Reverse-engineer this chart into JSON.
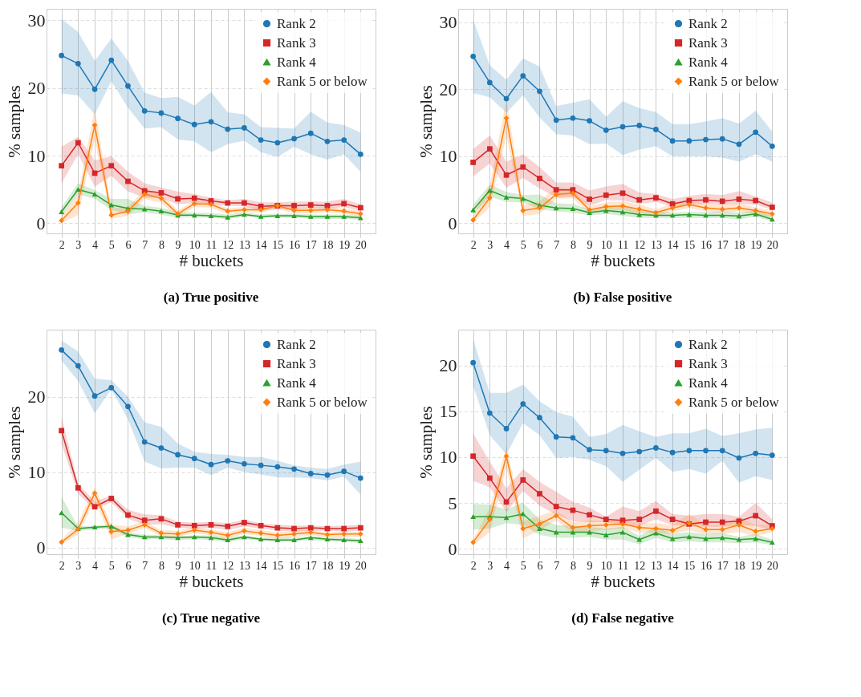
{
  "chart_data": [
    {
      "type": "line",
      "title": "(a) True positive",
      "xlabel": "# buckets",
      "ylabel": "% samples",
      "x": [
        2,
        3,
        4,
        5,
        6,
        7,
        8,
        9,
        10,
        11,
        12,
        13,
        14,
        15,
        16,
        17,
        18,
        19,
        20
      ],
      "xlim": [
        1.1,
        20.9
      ],
      "xticks": [
        2,
        3,
        4,
        5,
        6,
        7,
        8,
        9,
        10,
        11,
        12,
        13,
        14,
        15,
        16,
        17,
        18,
        19,
        20
      ],
      "ylim": [
        -1.5,
        31.7
      ],
      "yticks": [
        0,
        10,
        20,
        30
      ],
      "grid": true,
      "legend": "top right",
      "series": [
        {
          "name": "Rank 2",
          "color": "#1f77b4",
          "marker": "circle",
          "values": [
            24.8,
            23.6,
            19.8,
            24.1,
            20.3,
            16.6,
            16.3,
            15.5,
            14.6,
            15.0,
            13.9,
            14.1,
            12.3,
            11.9,
            12.5,
            13.3,
            12.1,
            12.3,
            10.2
          ],
          "lower": [
            19.2,
            18.9,
            16.1,
            21.0,
            17.1,
            14.0,
            14.2,
            12.4,
            12.1,
            10.5,
            11.7,
            12.2,
            10.5,
            9.8,
            11.3,
            10.2,
            9.4,
            10.2,
            7.6
          ],
          "upper": [
            30.2,
            28.3,
            24.0,
            27.3,
            24.0,
            19.3,
            18.5,
            18.7,
            17.4,
            19.4,
            16.4,
            16.1,
            14.2,
            14.1,
            14.0,
            16.5,
            14.9,
            14.5,
            13.4
          ]
        },
        {
          "name": "Rank 3",
          "color": "#d62728",
          "marker": "square",
          "values": [
            8.5,
            11.9,
            7.4,
            8.5,
            6.2,
            4.8,
            4.5,
            3.6,
            3.7,
            3.3,
            3.0,
            3.0,
            2.5,
            2.6,
            2.6,
            2.7,
            2.6,
            2.9,
            2.3
          ],
          "lower": [
            5.9,
            10.2,
            5.4,
            7.0,
            4.7,
            3.8,
            3.7,
            2.8,
            3.0,
            2.8,
            2.6,
            2.5,
            1.9,
            2.1,
            2.1,
            2.2,
            2.1,
            2.4,
            1.8
          ],
          "upper": [
            11.3,
            12.8,
            9.3,
            9.9,
            7.6,
            5.9,
            5.3,
            4.7,
            4.3,
            3.8,
            3.4,
            3.6,
            3.1,
            3.1,
            3.2,
            3.2,
            3.2,
            3.6,
            2.8
          ]
        },
        {
          "name": "Rank 4",
          "color": "#2ca02c",
          "marker": "triangle",
          "values": [
            1.7,
            5.0,
            4.3,
            2.7,
            2.2,
            2.1,
            1.8,
            1.2,
            1.2,
            1.1,
            0.9,
            1.3,
            1.0,
            1.1,
            1.1,
            1.0,
            1.0,
            1.0,
            0.8
          ],
          "lower": [
            1.0,
            4.3,
            3.6,
            2.0,
            1.3,
            1.6,
            1.3,
            0.8,
            0.9,
            0.8,
            0.6,
            1.0,
            0.8,
            0.8,
            0.8,
            0.7,
            0.6,
            0.7,
            0.5
          ],
          "upper": [
            2.4,
            5.9,
            4.9,
            3.6,
            3.6,
            2.6,
            2.3,
            1.6,
            1.6,
            1.5,
            1.3,
            1.6,
            1.3,
            1.4,
            1.4,
            1.3,
            1.3,
            1.3,
            1.1
          ]
        },
        {
          "name": "Rank 5 or below",
          "color": "#ff7f0e",
          "marker": "diamond",
          "values": [
            0.4,
            3.0,
            14.5,
            1.2,
            1.8,
            4.3,
            3.7,
            1.4,
            2.9,
            2.8,
            1.8,
            2.0,
            2.0,
            2.6,
            1.9,
            1.9,
            2.0,
            1.8,
            1.4
          ],
          "lower": [
            0.0,
            1.2,
            12.3,
            0.7,
            1.1,
            3.6,
            3.0,
            0.9,
            2.4,
            2.3,
            1.4,
            1.6,
            1.6,
            2.1,
            1.5,
            1.5,
            1.6,
            1.4,
            1.0
          ],
          "upper": [
            1.0,
            4.3,
            17.0,
            2.2,
            2.4,
            5.0,
            4.2,
            1.9,
            3.3,
            3.2,
            2.2,
            2.4,
            2.4,
            3.1,
            2.3,
            2.3,
            2.4,
            2.2,
            1.8
          ]
        }
      ]
    },
    {
      "type": "line",
      "title": "(b) False positive",
      "xlabel": "# buckets",
      "ylabel": "% samples",
      "x": [
        2,
        3,
        4,
        5,
        6,
        7,
        8,
        9,
        10,
        11,
        12,
        13,
        14,
        15,
        16,
        17,
        18,
        19,
        20
      ],
      "xlim": [
        1.1,
        20.9
      ],
      "xticks": [
        2,
        3,
        4,
        5,
        6,
        7,
        8,
        9,
        10,
        11,
        12,
        13,
        14,
        15,
        16,
        17,
        18,
        19,
        20
      ],
      "ylim": [
        -1.5,
        32
      ],
      "yticks": [
        0,
        10,
        20,
        30
      ],
      "grid": true,
      "legend": "top right",
      "series": [
        {
          "name": "Rank 2",
          "color": "#1f77b4",
          "marker": "circle",
          "values": [
            24.9,
            21.0,
            18.6,
            22.0,
            19.7,
            15.4,
            15.7,
            15.3,
            13.9,
            14.4,
            14.6,
            14.0,
            12.3,
            12.3,
            12.5,
            12.6,
            11.8,
            13.6,
            11.5
          ],
          "lower": [
            19.4,
            18.8,
            16.5,
            19.1,
            15.8,
            13.3,
            13.1,
            11.8,
            11.9,
            10.2,
            11.0,
            11.5,
            10.0,
            10.0,
            10.0,
            9.8,
            9.2,
            10.3,
            9.2
          ],
          "upper": [
            30.4,
            23.6,
            21.4,
            24.6,
            23.4,
            17.5,
            18.0,
            18.5,
            15.9,
            18.2,
            17.2,
            16.6,
            14.8,
            14.8,
            15.2,
            15.7,
            14.9,
            16.8,
            13.7
          ]
        },
        {
          "name": "Rank 3",
          "color": "#d62728",
          "marker": "square",
          "values": [
            9.1,
            11.1,
            7.2,
            8.4,
            6.7,
            5.0,
            5.0,
            3.6,
            4.2,
            4.5,
            3.5,
            3.8,
            2.9,
            3.4,
            3.5,
            3.3,
            3.6,
            3.4,
            2.4
          ],
          "lower": [
            7.0,
            8.9,
            5.3,
            6.8,
            5.2,
            3.9,
            3.9,
            2.6,
            3.5,
            3.4,
            2.9,
            3.2,
            2.5,
            2.8,
            2.9,
            2.8,
            2.9,
            2.8,
            2.0
          ],
          "upper": [
            11.1,
            13.1,
            9.2,
            10.3,
            8.4,
            6.1,
            6.1,
            4.9,
            5.5,
            5.9,
            4.6,
            4.4,
            3.6,
            4.1,
            4.4,
            4.2,
            4.8,
            4.0,
            3.1
          ]
        },
        {
          "name": "Rank 4",
          "color": "#2ca02c",
          "marker": "triangle",
          "values": [
            2.0,
            4.9,
            3.9,
            3.7,
            2.7,
            2.3,
            2.2,
            1.6,
            1.9,
            1.7,
            1.3,
            1.2,
            1.2,
            1.3,
            1.2,
            1.2,
            1.1,
            1.4,
            0.6
          ],
          "lower": [
            1.3,
            4.0,
            3.2,
            3.1,
            2.1,
            1.8,
            1.6,
            1.2,
            1.4,
            1.1,
            0.8,
            0.8,
            0.8,
            0.8,
            0.8,
            0.8,
            0.6,
            1.0,
            0.3
          ],
          "upper": [
            2.8,
            5.8,
            4.7,
            4.2,
            4.3,
            3.0,
            2.9,
            2.1,
            2.6,
            2.6,
            1.8,
            1.8,
            1.6,
            1.7,
            1.7,
            1.8,
            1.6,
            1.9,
            1.1
          ]
        },
        {
          "name": "Rank 5 or below",
          "color": "#ff7f0e",
          "marker": "diamond",
          "values": [
            0.5,
            3.8,
            15.7,
            1.9,
            2.3,
            4.3,
            4.5,
            2.0,
            2.5,
            2.6,
            2.1,
            1.6,
            2.3,
            2.8,
            2.3,
            2.1,
            2.3,
            1.9,
            1.4
          ],
          "lower": [
            0.1,
            2.4,
            13.0,
            1.1,
            1.4,
            3.7,
            3.7,
            1.5,
            2.0,
            2.0,
            1.5,
            1.1,
            1.8,
            2.3,
            1.8,
            1.6,
            1.8,
            1.4,
            0.9
          ],
          "upper": [
            1.1,
            5.6,
            18.5,
            2.7,
            3.3,
            5.4,
            5.2,
            2.6,
            3.1,
            3.3,
            2.8,
            2.1,
            3.0,
            3.3,
            2.9,
            2.8,
            3.0,
            2.4,
            1.9
          ]
        }
      ]
    },
    {
      "type": "line",
      "title": "(c) True negative",
      "xlabel": "# buckets",
      "ylabel": "% samples",
      "x": [
        2,
        3,
        4,
        5,
        6,
        7,
        8,
        9,
        10,
        11,
        12,
        13,
        14,
        15,
        16,
        17,
        18,
        19,
        20
      ],
      "xlim": [
        1.1,
        20.9
      ],
      "xticks": [
        2,
        3,
        4,
        5,
        6,
        7,
        8,
        9,
        10,
        11,
        12,
        13,
        14,
        15,
        16,
        17,
        18,
        19,
        20
      ],
      "ylim": [
        -0.9,
        28.9
      ],
      "yticks": [
        0,
        10,
        20
      ],
      "grid": true,
      "legend": "top right",
      "series": [
        {
          "name": "Rank 2",
          "color": "#1f77b4",
          "marker": "circle",
          "values": [
            26.2,
            24.1,
            20.1,
            21.2,
            18.7,
            14.0,
            13.2,
            12.3,
            11.8,
            11.0,
            11.5,
            11.1,
            10.9,
            10.7,
            10.4,
            9.8,
            9.6,
            10.1,
            9.2
          ],
          "lower": [
            24.8,
            22.1,
            17.8,
            21.0,
            17.0,
            11.4,
            10.5,
            10.6,
            10.6,
            9.6,
            10.6,
            10.0,
            9.7,
            9.3,
            9.3,
            9.2,
            8.9,
            9.4,
            7.0
          ],
          "upper": [
            27.5,
            26.0,
            22.4,
            22.2,
            20.0,
            16.6,
            16.0,
            13.8,
            12.7,
            12.4,
            12.3,
            12.0,
            12.0,
            11.5,
            10.9,
            10.6,
            10.4,
            11.0,
            11.4
          ]
        },
        {
          "name": "Rank 3",
          "color": "#d62728",
          "marker": "square",
          "values": [
            15.5,
            7.9,
            5.4,
            6.5,
            4.3,
            3.6,
            3.8,
            3.0,
            2.9,
            3.0,
            2.8,
            3.3,
            2.9,
            2.6,
            2.5,
            2.6,
            2.5,
            2.5,
            2.6
          ],
          "lower": [
            13.8,
            7.1,
            5.0,
            6.0,
            3.8,
            3.0,
            3.1,
            2.6,
            2.5,
            2.6,
            2.3,
            2.8,
            2.5,
            2.2,
            2.1,
            2.2,
            2.2,
            2.1,
            2.2
          ],
          "upper": [
            17.3,
            8.5,
            6.1,
            6.9,
            5.0,
            4.4,
            4.3,
            3.4,
            3.3,
            3.4,
            3.2,
            3.7,
            3.2,
            3.0,
            2.9,
            2.9,
            2.8,
            2.9,
            3.0
          ]
        },
        {
          "name": "Rank 4",
          "color": "#2ca02c",
          "marker": "triangle",
          "values": [
            4.6,
            2.5,
            2.7,
            2.8,
            1.7,
            1.4,
            1.4,
            1.3,
            1.4,
            1.3,
            1.0,
            1.4,
            1.1,
            1.0,
            1.0,
            1.3,
            1.1,
            1.0,
            0.9
          ],
          "lower": [
            2.6,
            2.2,
            2.4,
            2.5,
            1.4,
            1.1,
            1.1,
            1.0,
            1.1,
            1.0,
            0.7,
            1.1,
            0.9,
            0.8,
            0.8,
            1.0,
            0.8,
            0.8,
            0.6
          ],
          "upper": [
            6.7,
            2.8,
            2.9,
            3.0,
            2.0,
            1.7,
            1.6,
            1.5,
            1.6,
            1.6,
            1.3,
            1.6,
            1.3,
            1.3,
            1.3,
            1.5,
            1.3,
            1.3,
            1.1
          ]
        },
        {
          "name": "Rank 5 or below",
          "color": "#ff7f0e",
          "marker": "diamond",
          "values": [
            0.7,
            2.4,
            7.2,
            2.1,
            2.3,
            3.0,
            1.9,
            1.8,
            2.3,
            2.0,
            1.6,
            2.2,
            1.9,
            1.6,
            1.8,
            2.0,
            1.7,
            1.8,
            1.8
          ],
          "lower": [
            0.4,
            1.7,
            6.3,
            1.1,
            1.8,
            2.6,
            1.5,
            1.4,
            1.9,
            1.6,
            1.2,
            1.8,
            1.5,
            1.2,
            1.4,
            1.6,
            1.3,
            1.4,
            1.4
          ],
          "upper": [
            1.0,
            3.3,
            8.0,
            3.0,
            2.8,
            3.5,
            2.3,
            2.2,
            2.7,
            2.4,
            2.0,
            2.6,
            2.3,
            2.0,
            2.2,
            2.3,
            2.0,
            2.1,
            2.1
          ]
        }
      ]
    },
    {
      "type": "line",
      "title": "(d) False negative",
      "xlabel": "# buckets",
      "ylabel": "% samples",
      "x": [
        2,
        3,
        4,
        5,
        6,
        7,
        8,
        9,
        10,
        11,
        12,
        13,
        14,
        15,
        16,
        17,
        18,
        19,
        20
      ],
      "xlim": [
        1.1,
        20.9
      ],
      "xticks": [
        2,
        3,
        4,
        5,
        6,
        7,
        8,
        9,
        10,
        11,
        12,
        13,
        14,
        15,
        16,
        17,
        18,
        19,
        20
      ],
      "ylim": [
        -0.6,
        23.9
      ],
      "yticks": [
        0,
        5,
        10,
        15,
        20
      ],
      "grid": true,
      "legend": "top right",
      "series": [
        {
          "name": "Rank 2",
          "color": "#1f77b4",
          "marker": "circle",
          "values": [
            20.3,
            14.8,
            13.1,
            15.8,
            14.3,
            12.2,
            12.1,
            10.8,
            10.7,
            10.4,
            10.6,
            11.0,
            10.5,
            10.7,
            10.7,
            10.7,
            9.9,
            10.4,
            10.2
          ],
          "lower": [
            17.8,
            12.4,
            10.3,
            13.7,
            12.4,
            9.9,
            10.0,
            9.7,
            9.0,
            7.3,
            8.6,
            9.9,
            8.4,
            8.7,
            8.2,
            9.6,
            7.2,
            7.9,
            7.5
          ],
          "upper": [
            22.9,
            17.0,
            17.0,
            17.9,
            16.1,
            14.9,
            14.4,
            12.2,
            12.5,
            13.5,
            12.8,
            12.2,
            12.6,
            12.6,
            13.1,
            12.3,
            12.6,
            13.0,
            13.2
          ]
        },
        {
          "name": "Rank 3",
          "color": "#d62728",
          "marker": "square",
          "values": [
            10.1,
            7.7,
            5.1,
            7.5,
            6.0,
            4.6,
            4.2,
            3.7,
            3.2,
            3.1,
            3.2,
            4.1,
            3.2,
            2.7,
            2.9,
            2.9,
            3.0,
            3.6,
            2.5
          ],
          "lower": [
            7.4,
            6.7,
            4.0,
            6.3,
            4.7,
            3.7,
            3.0,
            2.9,
            2.9,
            2.5,
            2.5,
            3.2,
            2.6,
            2.4,
            2.4,
            2.4,
            2.5,
            2.5,
            2.0
          ],
          "upper": [
            12.6,
            9.5,
            6.6,
            8.7,
            7.3,
            6.2,
            5.1,
            4.5,
            3.5,
            4.6,
            4.1,
            5.2,
            3.8,
            3.6,
            3.8,
            3.8,
            3.5,
            5.0,
            3.2
          ]
        },
        {
          "name": "Rank 4",
          "color": "#2ca02c",
          "marker": "triangle",
          "values": [
            3.5,
            3.5,
            3.4,
            3.8,
            2.2,
            1.8,
            1.8,
            1.8,
            1.5,
            1.8,
            1.0,
            1.7,
            1.1,
            1.3,
            1.1,
            1.2,
            1.0,
            1.1,
            0.7
          ],
          "lower": [
            2.1,
            2.2,
            2.8,
            2.6,
            1.5,
            1.2,
            1.2,
            1.3,
            1.0,
            1.0,
            0.5,
            1.2,
            0.7,
            0.8,
            0.7,
            0.7,
            0.6,
            0.7,
            0.4
          ],
          "upper": [
            4.9,
            4.8,
            4.3,
            5.0,
            3.2,
            2.6,
            2.5,
            2.4,
            2.2,
            2.4,
            1.4,
            2.4,
            1.6,
            1.8,
            1.6,
            1.7,
            1.3,
            1.6,
            1.0
          ]
        },
        {
          "name": "Rank 5 or below",
          "color": "#ff7f0e",
          "marker": "diamond",
          "values": [
            0.7,
            3.2,
            10.1,
            2.2,
            2.7,
            3.6,
            2.3,
            2.5,
            2.6,
            2.7,
            2.3,
            2.2,
            2.0,
            2.8,
            2.1,
            2.1,
            2.6,
            1.9,
            2.2
          ],
          "lower": [
            0.4,
            1.8,
            8.8,
            1.1,
            2.0,
            3.1,
            1.7,
            1.9,
            2.1,
            2.2,
            1.8,
            1.7,
            1.6,
            2.0,
            1.6,
            1.6,
            1.8,
            1.4,
            1.8
          ],
          "upper": [
            1.0,
            4.4,
            11.2,
            3.0,
            3.6,
            4.2,
            2.9,
            3.1,
            3.0,
            3.2,
            2.8,
            2.8,
            2.6,
            3.8,
            2.6,
            2.6,
            3.5,
            2.6,
            2.6
          ]
        }
      ]
    }
  ]
}
